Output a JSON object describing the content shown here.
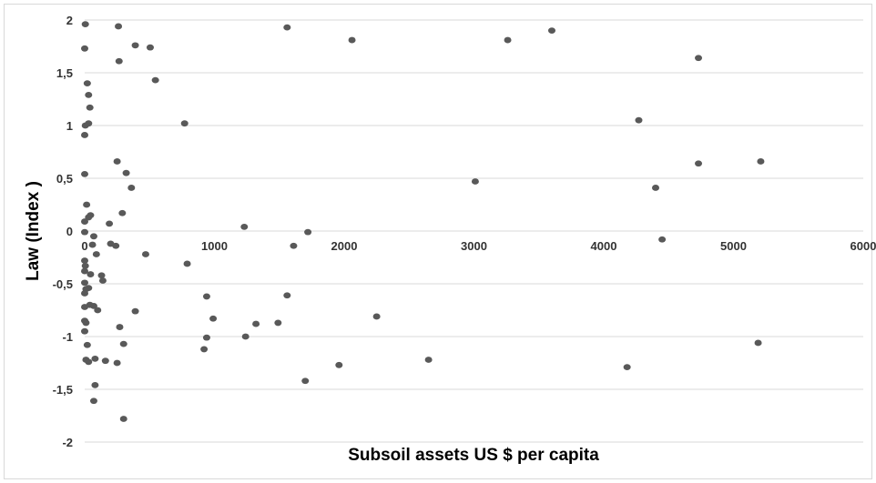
{
  "chart_data": {
    "type": "scatter",
    "xlabel": "Subsoil assets US $ per capita",
    "ylabel": "Law  (Index )",
    "xlim": [
      0,
      6000
    ],
    "ylim": [
      -2,
      2
    ],
    "x_ticks": [
      "0",
      "1000",
      "2000",
      "3000",
      "4000",
      "5000",
      "6000"
    ],
    "y_ticks": [
      "2",
      "1,5",
      "1",
      "0,5",
      "0",
      "-0,5",
      "-1",
      "-1,5",
      "-2"
    ],
    "grid": "horizontal",
    "marker_color": "#595959",
    "points": [
      [
        5,
        1.96
      ],
      [
        260,
        1.94
      ],
      [
        0,
        1.73
      ],
      [
        390,
        1.76
      ],
      [
        505,
        1.74
      ],
      [
        1560,
        1.93
      ],
      [
        2060,
        1.81
      ],
      [
        3260,
        1.81
      ],
      [
        3600,
        1.9
      ],
      [
        4730,
        1.64
      ],
      [
        265,
        1.61
      ],
      [
        545,
        1.43
      ],
      [
        20,
        1.4
      ],
      [
        30,
        1.29
      ],
      [
        40,
        1.17
      ],
      [
        5,
        1.0
      ],
      [
        30,
        1.02
      ],
      [
        770,
        1.02
      ],
      [
        0,
        0.91
      ],
      [
        4270,
        1.05
      ],
      [
        250,
        0.66
      ],
      [
        320,
        0.55
      ],
      [
        0,
        0.54
      ],
      [
        360,
        0.41
      ],
      [
        3010,
        0.47
      ],
      [
        4400,
        0.41
      ],
      [
        4730,
        0.64
      ],
      [
        5210,
        0.66
      ],
      [
        15,
        0.25
      ],
      [
        290,
        0.17
      ],
      [
        45,
        0.15
      ],
      [
        30,
        0.13
      ],
      [
        190,
        0.07
      ],
      [
        0,
        0.09
      ],
      [
        1230,
        0.04
      ],
      [
        0,
        -0.01
      ],
      [
        1720,
        -0.01
      ],
      [
        70,
        -0.05
      ],
      [
        200,
        -0.12
      ],
      [
        60,
        -0.13
      ],
      [
        1610,
        -0.14
      ],
      [
        240,
        -0.14
      ],
      [
        470,
        -0.22
      ],
      [
        90,
        -0.22
      ],
      [
        4450,
        -0.08
      ],
      [
        0,
        -0.28
      ],
      [
        5,
        -0.33
      ],
      [
        0,
        -0.38
      ],
      [
        790,
        -0.31
      ],
      [
        45,
        -0.41
      ],
      [
        130,
        -0.42
      ],
      [
        140,
        -0.47
      ],
      [
        0,
        -0.49
      ],
      [
        10,
        -0.55
      ],
      [
        0,
        -0.59
      ],
      [
        30,
        -0.54
      ],
      [
        940,
        -0.62
      ],
      [
        1560,
        -0.61
      ],
      [
        0,
        -0.72
      ],
      [
        40,
        -0.7
      ],
      [
        70,
        -0.71
      ],
      [
        100,
        -0.75
      ],
      [
        390,
        -0.76
      ],
      [
        0,
        -0.85
      ],
      [
        10,
        -0.87
      ],
      [
        990,
        -0.83
      ],
      [
        1320,
        -0.88
      ],
      [
        1490,
        -0.87
      ],
      [
        2250,
        -0.81
      ],
      [
        270,
        -0.91
      ],
      [
        0,
        -0.95
      ],
      [
        940,
        -1.01
      ],
      [
        1240,
        -1.0
      ],
      [
        300,
        -1.07
      ],
      [
        20,
        -1.08
      ],
      [
        920,
        -1.12
      ],
      [
        5190,
        -1.06
      ],
      [
        10,
        -1.22
      ],
      [
        30,
        -1.24
      ],
      [
        80,
        -1.21
      ],
      [
        160,
        -1.23
      ],
      [
        250,
        -1.25
      ],
      [
        1960,
        -1.27
      ],
      [
        2650,
        -1.22
      ],
      [
        4180,
        -1.29
      ],
      [
        1700,
        -1.42
      ],
      [
        80,
        -1.46
      ],
      [
        70,
        -1.61
      ],
      [
        300,
        -1.78
      ]
    ]
  }
}
